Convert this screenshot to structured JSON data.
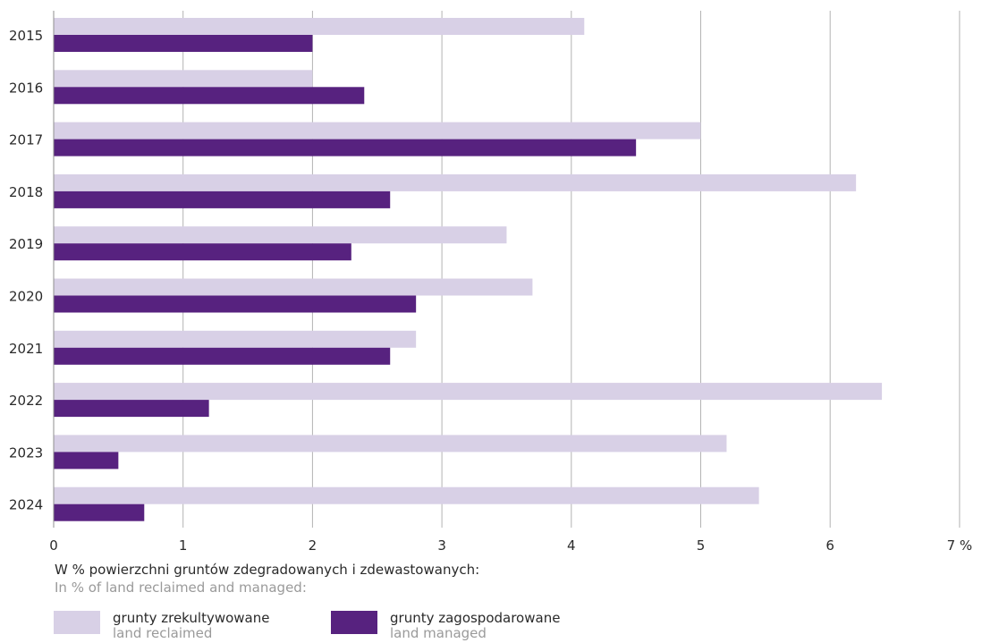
{
  "chart_data": {
    "type": "bar",
    "orientation": "horizontal",
    "categories": [
      "2015",
      "2016",
      "2017",
      "2018",
      "2019",
      "2020",
      "2021",
      "2022",
      "2023",
      "2024"
    ],
    "series": [
      {
        "name": "grunty zrekultywowane / land reclaimed",
        "color": "#d8d0e6",
        "values": [
          4.1,
          2.0,
          5.0,
          6.2,
          3.5,
          3.7,
          2.8,
          6.4,
          5.2,
          5.45
        ]
      },
      {
        "name": "grunty zagospodarowane / land managed",
        "color": "#57227f",
        "values": [
          2.0,
          2.4,
          4.5,
          2.6,
          2.3,
          2.8,
          2.6,
          1.2,
          0.5,
          0.7
        ]
      }
    ],
    "xlim": [
      0,
      7
    ],
    "xticks": [
      "0",
      "1",
      "2",
      "3",
      "4",
      "5",
      "6",
      "7 %"
    ],
    "grid": true,
    "caption_pl": "W % powierzchni gruntów zdegradowanych i zdewastowanych:",
    "caption_en": "In % of land reclaimed and managed:",
    "legend": [
      {
        "label_pl": "grunty zrekultywowane",
        "label_en": "land reclaimed",
        "color": "#d8d0e6"
      },
      {
        "label_pl": "grunty zagospodarowane",
        "label_en": "land managed",
        "color": "#57227f"
      }
    ],
    "legend_position": "bottom-left"
  }
}
